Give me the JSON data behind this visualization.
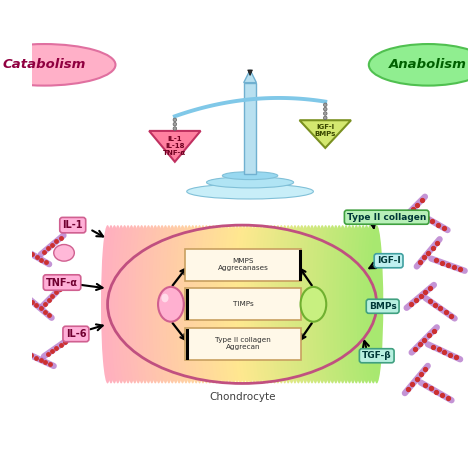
{
  "bg_color": "#ffffff",
  "catabolism_label": "Catabolism",
  "anabolism_label": "Anabolism",
  "cat_ellipse_fc": "#ffb0c8",
  "cat_ellipse_ec": "#e070a0",
  "ana_ellipse_fc": "#90ee90",
  "ana_ellipse_ec": "#50c050",
  "left_tri_fc": "#ff80a0",
  "left_tri_ec": "#c03060",
  "right_tri_fc": "#d4e870",
  "right_tri_ec": "#7a9020",
  "beam_color": "#80c8e8",
  "pole_fc": "#b8e0f0",
  "pole_ec": "#70b0d0",
  "base_fc": "#c8eef8",
  "base_ec": "#80c0d8",
  "scale_left_labels": [
    "IL-1",
    "IL-18",
    "TNF-α"
  ],
  "scale_right_labels": [
    "IGF-I",
    "BMPs"
  ],
  "chondrocyte_label": "Chondrocyte",
  "box_labels": [
    "MMPS\nAggrecanases",
    "TIMPs",
    "Type II collagen\nAggrecan"
  ],
  "box_bg": "#fff8e8",
  "box_border": "#c8a060",
  "left_cytokines": [
    "IL-1",
    "TNF-α",
    "IL-6"
  ],
  "right_factors": [
    "Type II collagen",
    "IGF-I",
    "BMPs",
    "TGF-β"
  ],
  "right_label_fcs": [
    "#b0f0b0",
    "#c0f0f0",
    "#b0f0e0",
    "#b0f0e0"
  ],
  "right_label_ecs": [
    "#40a040",
    "#40a0a0",
    "#40a080",
    "#40a080"
  ],
  "left_label_fc": "#ffb0d8",
  "left_label_ec": "#d06090",
  "nuc_left_fc": "#ffb0d0",
  "nuc_left_ec": "#d06090",
  "nuc_right_fc": "#c8f080",
  "nuc_right_ec": "#70b030",
  "chondro_ec": "#c05080",
  "arrow_color": "#000000",
  "fiber_color": "#b070c8",
  "fiber_dot_color": "#cc3030"
}
